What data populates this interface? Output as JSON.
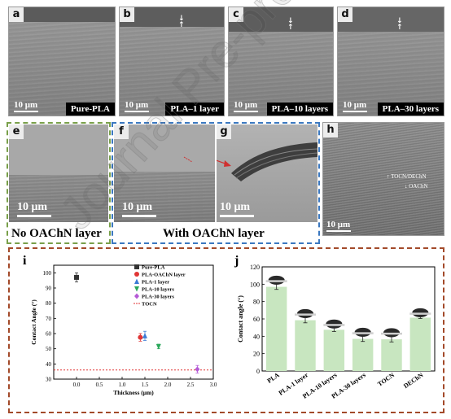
{
  "top_row": [
    {
      "letter": "a",
      "scale": "10 μm",
      "tag": "Pure-PLA"
    },
    {
      "letter": "b",
      "scale": "10 μm",
      "tag": "PLA–1 layer"
    },
    {
      "letter": "c",
      "scale": "10 μm",
      "tag": "PLA–10 layers"
    },
    {
      "letter": "d",
      "scale": "10 μm",
      "tag": "PLA–30 layers"
    }
  ],
  "middle_row": {
    "e": {
      "letter": "e",
      "scale": "10 μm",
      "caption": "No OAChN layer"
    },
    "f": {
      "letter": "f",
      "scale": "10 μm"
    },
    "g": {
      "letter": "g",
      "scale": "10 μm"
    },
    "fg_caption": "With OAChN layer",
    "h": {
      "letter": "h",
      "scale": "10 μm",
      "label_top": "↑ TOCN/DEChN",
      "label_bottom": "↓ OAChN"
    }
  },
  "colors": {
    "green_box": "#79a04a",
    "blue_box": "#3b78c0",
    "brown_box": "#a34a2a",
    "bar_fill": "#c8e6c0",
    "tocn_line": "#e03030"
  },
  "watermark": "Journal Pre-proof",
  "chart_data": [
    {
      "panel": "i",
      "type": "scatter",
      "xlabel": "Thickness (μm)",
      "ylabel": "Contact Angle (°)",
      "xlim": [
        -0.5,
        3.0
      ],
      "ylim": [
        30,
        105
      ],
      "xticks": [
        "0.0",
        "0.5",
        "1.0",
        "1.5",
        "2.0",
        "2.5",
        "3.0"
      ],
      "yticks": [
        "30",
        "40",
        "50",
        "60",
        "70",
        "80",
        "90",
        "100"
      ],
      "series": [
        {
          "name": "Pure-PLA",
          "marker": "square",
          "color": "#333333",
          "x": 0.0,
          "y": 97,
          "err": 3
        },
        {
          "name": "PLA-OAChN layer",
          "marker": "circle",
          "color": "#e03535",
          "x": 1.4,
          "y": 57.5,
          "err": 2.5
        },
        {
          "name": "PLA-1 layer",
          "marker": "triangle",
          "color": "#3a7bd5",
          "x": 1.5,
          "y": 58.5,
          "err": 3
        },
        {
          "name": "PLA-10 layers",
          "marker": "triangle-down",
          "color": "#2aa85a",
          "x": 1.8,
          "y": 51.5,
          "err": 1.5
        },
        {
          "name": "PLA-30 layers",
          "marker": "diamond",
          "color": "#b45ad6",
          "x": 2.65,
          "y": 36.5,
          "err": 2.5
        }
      ],
      "reference_line": {
        "name": "TOCN",
        "y": 36,
        "style": "dotted",
        "color": "#e03030"
      },
      "legend_position": "top-right"
    },
    {
      "panel": "j",
      "type": "bar",
      "ylabel": "Contact angle (°)",
      "ylim": [
        0,
        120
      ],
      "yticks": [
        "0",
        "20",
        "40",
        "60",
        "80",
        "100",
        "120"
      ],
      "categories": [
        "PLA",
        "PLA-1 layer",
        "PLA-10 layers",
        "PLA-30 layers",
        "TOCN",
        "DEChN"
      ],
      "values": [
        97,
        58.5,
        47.5,
        37,
        36.5,
        61.5
      ],
      "errors": [
        3,
        3,
        2,
        3,
        3,
        1
      ]
    }
  ]
}
